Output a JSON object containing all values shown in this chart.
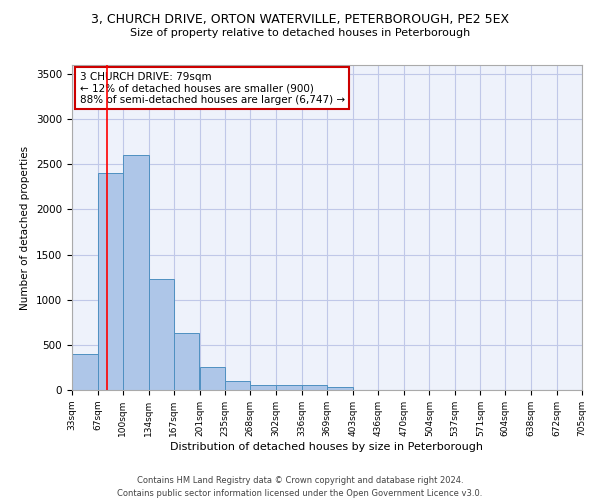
{
  "title": "3, CHURCH DRIVE, ORTON WATERVILLE, PETERBOROUGH, PE2 5EX",
  "subtitle": "Size of property relative to detached houses in Peterborough",
  "xlabel": "Distribution of detached houses by size in Peterborough",
  "ylabel": "Number of detached properties",
  "footer_line1": "Contains HM Land Registry data © Crown copyright and database right 2024.",
  "footer_line2": "Contains public sector information licensed under the Open Government Licence v3.0.",
  "bins": [
    33,
    67,
    100,
    134,
    167,
    201,
    235,
    268,
    302,
    336,
    369,
    403,
    436,
    470,
    504,
    537,
    571,
    604,
    638,
    672,
    705
  ],
  "bar_values": [
    400,
    2400,
    2600,
    1230,
    630,
    250,
    100,
    60,
    55,
    50,
    35,
    0,
    0,
    0,
    0,
    0,
    0,
    0,
    0,
    0
  ],
  "bar_color": "#aec6e8",
  "bar_edge_color": "#4f90c1",
  "bg_color": "#eef2fb",
  "grid_color": "#c0c8e8",
  "red_line_x": 79,
  "annotation_text": "3 CHURCH DRIVE: 79sqm\n← 12% of detached houses are smaller (900)\n88% of semi-detached houses are larger (6,747) →",
  "annotation_box_color": "#ffffff",
  "annotation_box_edge": "#cc0000",
  "ylim": [
    0,
    3600
  ],
  "yticks": [
    0,
    500,
    1000,
    1500,
    2000,
    2500,
    3000,
    3500
  ]
}
